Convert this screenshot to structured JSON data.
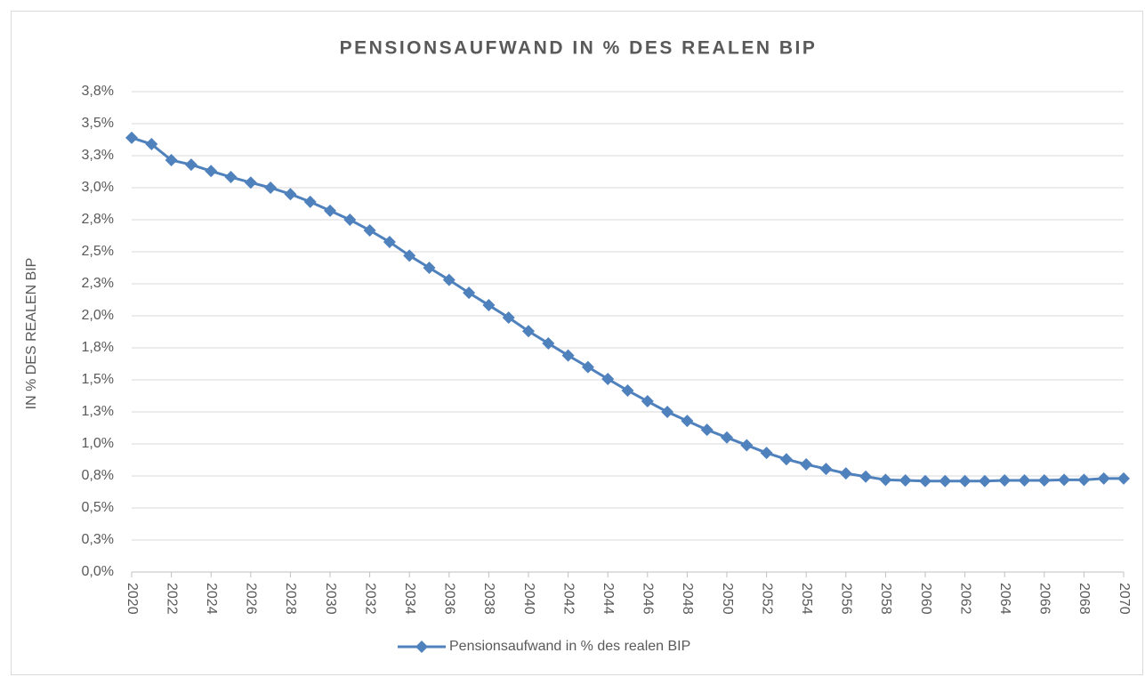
{
  "chart_data": {
    "type": "line",
    "title": "PENSIONSAUFWAND IN % DES REALEN BIP",
    "y_label": "IN % DES REALEN BIP",
    "x": [
      2020,
      2021,
      2022,
      2023,
      2024,
      2025,
      2026,
      2027,
      2028,
      2029,
      2030,
      2031,
      2032,
      2033,
      2034,
      2035,
      2036,
      2037,
      2038,
      2039,
      2040,
      2041,
      2042,
      2043,
      2044,
      2045,
      2046,
      2047,
      2048,
      2049,
      2050,
      2051,
      2052,
      2053,
      2054,
      2055,
      2056,
      2057,
      2058,
      2059,
      2060,
      2061,
      2062,
      2063,
      2064,
      2065,
      2066,
      2067,
      2068,
      2069,
      2070
    ],
    "xlim": [
      2020,
      2070
    ],
    "xticks": [
      2020,
      2022,
      2024,
      2026,
      2028,
      2030,
      2032,
      2034,
      2036,
      2038,
      2040,
      2042,
      2044,
      2046,
      2048,
      2050,
      2052,
      2054,
      2056,
      2058,
      2060,
      2062,
      2064,
      2066,
      2068,
      2070
    ],
    "ylim": [
      0,
      3.75
    ],
    "yticks": [
      {
        "value": 0,
        "label": "0,0%"
      },
      {
        "value": 0.25,
        "label": "0,3%"
      },
      {
        "value": 0.5,
        "label": "0,5%"
      },
      {
        "value": 0.75,
        "label": "0,8%"
      },
      {
        "value": 1,
        "label": "1,0%"
      },
      {
        "value": 1.25,
        "label": "1,3%"
      },
      {
        "value": 1.5,
        "label": "1,5%"
      },
      {
        "value": 1.75,
        "label": "1,8%"
      },
      {
        "value": 2,
        "label": "2,0%"
      },
      {
        "value": 2.25,
        "label": "2,3%"
      },
      {
        "value": 2.5,
        "label": "2,5%"
      },
      {
        "value": 2.75,
        "label": "2,8%"
      },
      {
        "value": 3,
        "label": "3,0%"
      },
      {
        "value": 3.25,
        "label": "3,3%"
      },
      {
        "value": 3.5,
        "label": "3,5%"
      },
      {
        "value": 3.75,
        "label": "3,8%"
      }
    ],
    "grid": true,
    "legend": "bottom",
    "series": [
      {
        "name": "Pensionsaufwand in % des realen BIP",
        "color": "#4f81bd",
        "values": [
          3.39,
          3.34,
          3.215,
          3.18,
          3.13,
          3.083,
          3.04,
          3.0,
          2.95,
          2.89,
          2.82,
          2.75,
          2.667,
          2.576,
          2.47,
          2.375,
          2.28,
          2.18,
          2.083,
          1.986,
          1.88,
          1.785,
          1.69,
          1.6,
          1.507,
          1.417,
          1.333,
          1.25,
          1.18,
          1.11,
          1.05,
          0.99,
          0.93,
          0.88,
          0.84,
          0.805,
          0.77,
          0.745,
          0.72,
          0.715,
          0.71,
          0.71,
          0.71,
          0.71,
          0.715,
          0.715,
          0.715,
          0.72,
          0.72,
          0.73,
          0.73
        ]
      }
    ]
  }
}
